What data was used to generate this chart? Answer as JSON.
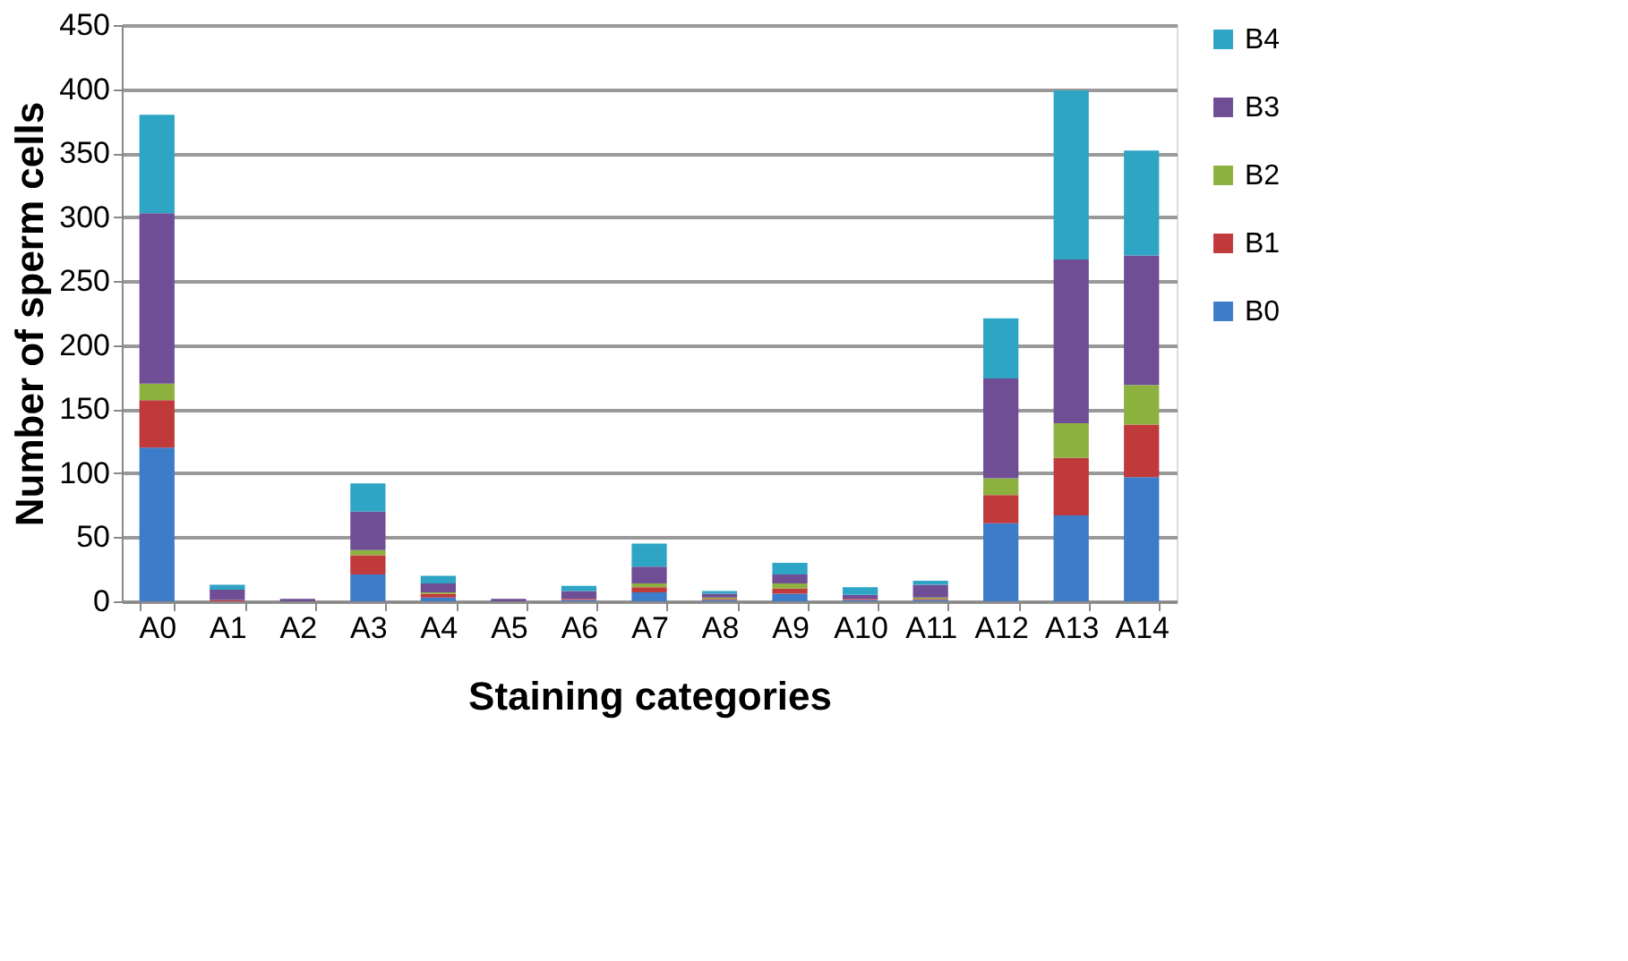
{
  "chart_data": {
    "type": "bar",
    "stacked": true,
    "xlabel": "Staining categories",
    "ylabel": "Number of sperm cells",
    "categories": [
      "A0",
      "A1",
      "A2",
      "A3",
      "A4",
      "A5",
      "A6",
      "A7",
      "A8",
      "A9",
      "A10",
      "A11",
      "A12",
      "A13",
      "A14"
    ],
    "series": [
      {
        "name": "B0",
        "color": "#3d7cc9",
        "values": [
          120,
          0,
          0,
          21,
          3,
          0,
          1,
          7,
          1,
          6,
          1,
          1,
          61,
          67,
          97
        ]
      },
      {
        "name": "B1",
        "color": "#c0393b",
        "values": [
          37,
          1,
          0,
          15,
          3,
          0,
          1,
          4,
          1,
          4,
          1,
          1,
          22,
          45,
          41
        ]
      },
      {
        "name": "B2",
        "color": "#8db13f",
        "values": [
          13,
          0,
          0,
          4,
          1,
          0,
          0,
          3,
          1,
          4,
          0,
          1,
          13,
          27,
          31
        ]
      },
      {
        "name": "B3",
        "color": "#6f4e96",
        "values": [
          133,
          8,
          2,
          30,
          7,
          2,
          6,
          13,
          3,
          7,
          3,
          10,
          78,
          128,
          101
        ]
      },
      {
        "name": "B4",
        "color": "#2ea5c4",
        "values": [
          77,
          4,
          0,
          22,
          6,
          0,
          4,
          18,
          2,
          9,
          6,
          3,
          47,
          132,
          82
        ]
      }
    ],
    "ylim": [
      0,
      450
    ],
    "yticks": [
      0,
      50,
      100,
      150,
      200,
      250,
      300,
      350,
      400,
      450
    ],
    "grid": "y",
    "legend": "right"
  }
}
